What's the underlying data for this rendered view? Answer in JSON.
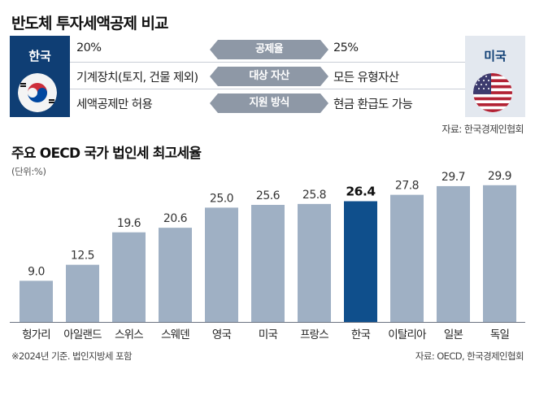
{
  "title": "반도체 투자세액공제 비교",
  "comparison": {
    "left_country": "한국",
    "right_country": "미국",
    "rows": [
      {
        "label": "공제율",
        "korea": "20%",
        "usa": "25%"
      },
      {
        "label": "대상 자산",
        "korea": "기계장치(토지, 건물 제외)",
        "usa": "모든 유형자산"
      },
      {
        "label": "지원 방식",
        "korea": "세액공제만 허용",
        "usa": "현금 환급도 가능"
      }
    ],
    "source": "자료: 한국경제인협회"
  },
  "colors": {
    "korea_panel": "#0f3e74",
    "bar_default": "#9fb0c4",
    "bar_highlight": "#0f4f8c",
    "label_pill": "#8e98a6"
  },
  "chart_data": {
    "type": "bar",
    "title": "주요 OECD 국가 법인세 최고세율",
    "unit": "(단위:%)",
    "categories": [
      "헝가리",
      "아일랜드",
      "스위스",
      "스웨덴",
      "영국",
      "미국",
      "프랑스",
      "한국",
      "이탈리아",
      "일본",
      "독일"
    ],
    "values": [
      9.0,
      12.5,
      19.6,
      20.6,
      25.0,
      25.6,
      25.8,
      26.4,
      27.8,
      29.7,
      29.9
    ],
    "value_labels": [
      "9.0",
      "12.5",
      "19.6",
      "20.6",
      "25.0",
      "25.6",
      "25.8",
      "26.4",
      "27.8",
      "29.7",
      "29.9"
    ],
    "highlight": "한국",
    "ylim": [
      0,
      32
    ],
    "note": "※2024년 기준. 법인지방세 포함",
    "source": "자료: OECD, 한국경제인협회"
  }
}
